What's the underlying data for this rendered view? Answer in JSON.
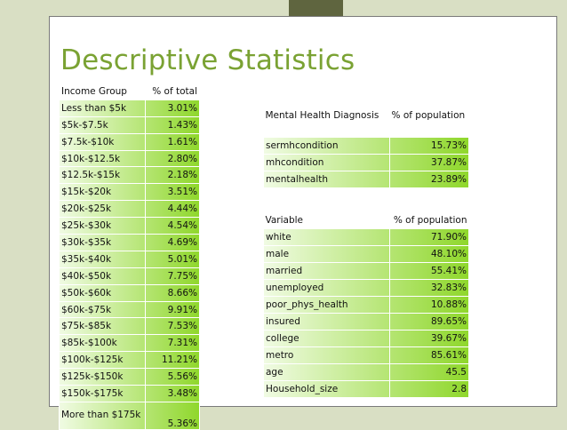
{
  "slide": {
    "title": "Descriptive Statistics",
    "colors": {
      "title": "#7aa233",
      "background": "#d9dfc4",
      "accent_bar": "#5f653f",
      "gradient_light": "#f0fbe3",
      "gradient_dark": "#8fd72b"
    }
  },
  "income_table": {
    "headers": [
      "Income Group",
      "% of total"
    ],
    "rows": [
      {
        "group": "Less than $5k",
        "pct": "3.01%"
      },
      {
        "group": "$5k-$7.5k",
        "pct": "1.43%"
      },
      {
        "group": "$7.5k-$10k",
        "pct": "1.61%"
      },
      {
        "group": "$10k-$12.5k",
        "pct": "2.80%"
      },
      {
        "group": "$12.5k-$15k",
        "pct": "2.18%"
      },
      {
        "group": "$15k-$20k",
        "pct": "3.51%"
      },
      {
        "group": "$20k-$25k",
        "pct": "4.44%"
      },
      {
        "group": "$25k-$30k",
        "pct": "4.54%"
      },
      {
        "group": "$30k-$35k",
        "pct": "4.69%"
      },
      {
        "group": "$35k-$40k",
        "pct": "5.01%"
      },
      {
        "group": "$40k-$50k",
        "pct": "7.75%"
      },
      {
        "group": "$50k-$60k",
        "pct": "8.66%"
      },
      {
        "group": "$60k-$75k",
        "pct": "9.91%"
      },
      {
        "group": "$75k-$85k",
        "pct": "7.53%"
      },
      {
        "group": "$85k-$100k",
        "pct": "7.31%"
      },
      {
        "group": "$100k-$125k",
        "pct": "11.21%"
      },
      {
        "group": "$125k-$150k",
        "pct": "5.56%"
      },
      {
        "group": "$150k-$175k",
        "pct": "3.48%"
      },
      {
        "group": "More than $175k",
        "pct": "5.36%"
      }
    ]
  },
  "mental_table": {
    "headers": [
      "Mental Health Diagnosis",
      "% of population"
    ],
    "rows": [
      {
        "label": "sermhcondition",
        "pct": "15.73%"
      },
      {
        "label": "mhcondition",
        "pct": "37.87%"
      },
      {
        "label": "mentalhealth",
        "pct": "23.89%"
      }
    ]
  },
  "variable_table": {
    "headers": [
      "Variable",
      "% of population"
    ],
    "rows": [
      {
        "label": "white",
        "pct": "71.90%"
      },
      {
        "label": "male",
        "pct": "48.10%"
      },
      {
        "label": "married",
        "pct": "55.41%"
      },
      {
        "label": "unemployed",
        "pct": "32.83%"
      },
      {
        "label": "poor_phys_health",
        "pct": "10.88%"
      },
      {
        "label": "insured",
        "pct": "89.65%"
      },
      {
        "label": "college",
        "pct": "39.67%"
      },
      {
        "label": "metro",
        "pct": "85.61%"
      },
      {
        "label": "age",
        "pct": "45.5"
      },
      {
        "label": "Household_size",
        "pct": "2.8"
      }
    ]
  }
}
